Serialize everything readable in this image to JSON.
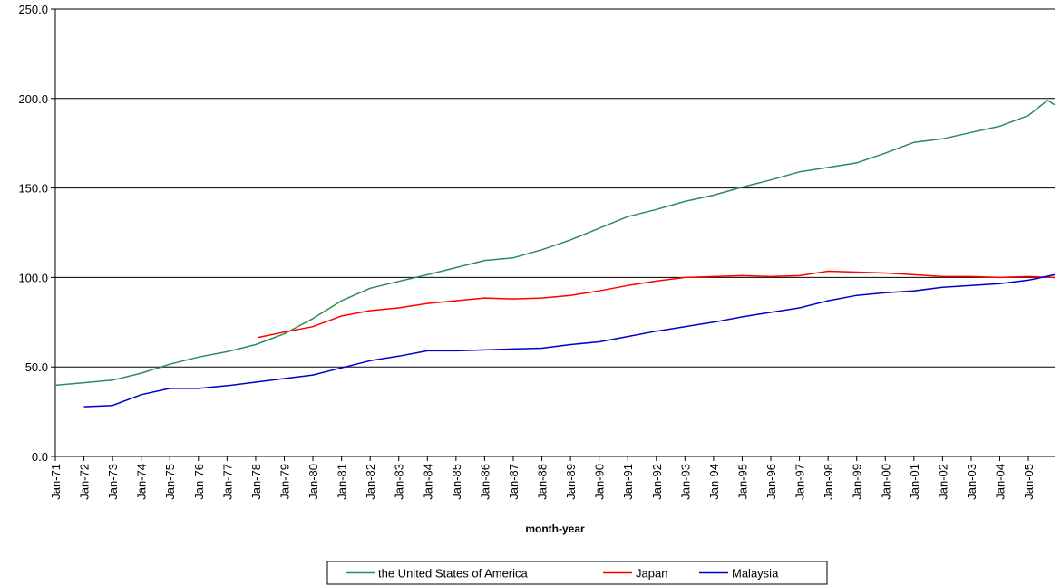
{
  "chart_data": {
    "type": "line",
    "title": "",
    "xlabel": "month-year",
    "ylabel": "",
    "ylim": [
      0,
      250
    ],
    "y_ticks": [
      "0.0",
      "50.0",
      "100.0",
      "150.0",
      "200.0",
      "250.0"
    ],
    "x_range": [
      "Jan-71",
      "Dec-05"
    ],
    "x_ticks": [
      "Jan-71",
      "Jan-72",
      "Jan-73",
      "Jan-74",
      "Jan-75",
      "Jan-76",
      "Jan-77",
      "Jan-78",
      "Jan-79",
      "Jan-80",
      "Jan-81",
      "Jan-82",
      "Jan-83",
      "Jan-84",
      "Jan-85",
      "Jan-86",
      "Jan-87",
      "Jan-88",
      "Jan-89",
      "Jan-90",
      "Jan-91",
      "Jan-92",
      "Jan-93",
      "Jan-94",
      "Jan-95",
      "Jan-96",
      "Jan-97",
      "Jan-98",
      "Jan-99",
      "Jan-00",
      "Jan-01",
      "Jan-02",
      "Jan-03",
      "Jan-04",
      "Jan-05"
    ],
    "grid": "horizontal",
    "legend_position": "bottom-center",
    "series": [
      {
        "name": "the United States of America",
        "color": "#2e8b57",
        "points": [
          [
            "Jan-71",
            39.8
          ],
          [
            "Jan-72",
            41.2
          ],
          [
            "Jan-73",
            42.6
          ],
          [
            "Jan-74",
            46.5
          ],
          [
            "Jan-75",
            51.5
          ],
          [
            "Jan-76",
            55.5
          ],
          [
            "Jan-77",
            58.5
          ],
          [
            "Jan-78",
            62.5
          ],
          [
            "Jan-79",
            68.5
          ],
          [
            "Jan-80",
            77.0
          ],
          [
            "Jan-81",
            87.0
          ],
          [
            "Jan-82",
            94.0
          ],
          [
            "Jan-83",
            97.8
          ],
          [
            "Jan-84",
            101.5
          ],
          [
            "Jan-85",
            105.5
          ],
          [
            "Jan-86",
            109.5
          ],
          [
            "Jan-87",
            111.0
          ],
          [
            "Jan-88",
            115.5
          ],
          [
            "Jan-89",
            121.0
          ],
          [
            "Jan-90",
            127.5
          ],
          [
            "Jan-91",
            134.0
          ],
          [
            "Jan-92",
            138.0
          ],
          [
            "Jan-93",
            142.5
          ],
          [
            "Jan-94",
            146.0
          ],
          [
            "Jan-95",
            150.5
          ],
          [
            "Jan-96",
            154.5
          ],
          [
            "Jan-97",
            159.0
          ],
          [
            "Jan-98",
            161.5
          ],
          [
            "Jan-99",
            164.0
          ],
          [
            "Jan-00",
            169.5
          ],
          [
            "Jan-01",
            175.5
          ],
          [
            "Jan-02",
            177.5
          ],
          [
            "Jan-03",
            181.0
          ],
          [
            "Jan-04",
            184.5
          ],
          [
            "Jan-05",
            190.5
          ],
          [
            "Sep-05",
            199.0
          ],
          [
            "Dec-05",
            196.5
          ]
        ]
      },
      {
        "name": "Japan",
        "color": "#ff0000",
        "points": [
          [
            "Feb-78",
            66.5
          ],
          [
            "Jan-79",
            69.5
          ],
          [
            "Jan-80",
            72.5
          ],
          [
            "Jan-81",
            78.5
          ],
          [
            "Jan-82",
            81.5
          ],
          [
            "Jan-83",
            83.0
          ],
          [
            "Jan-84",
            85.5
          ],
          [
            "Jan-85",
            87.0
          ],
          [
            "Jan-86",
            88.5
          ],
          [
            "Jan-87",
            88.0
          ],
          [
            "Jan-88",
            88.5
          ],
          [
            "Jan-89",
            90.0
          ],
          [
            "Jan-90",
            92.5
          ],
          [
            "Jan-91",
            95.5
          ],
          [
            "Jan-92",
            98.0
          ],
          [
            "Jan-93",
            100.0
          ],
          [
            "Jan-94",
            100.5
          ],
          [
            "Jan-95",
            101.0
          ],
          [
            "Jan-96",
            100.5
          ],
          [
            "Jan-97",
            101.0
          ],
          [
            "Jan-98",
            103.5
          ],
          [
            "Jan-99",
            103.0
          ],
          [
            "Jan-00",
            102.5
          ],
          [
            "Jan-01",
            101.5
          ],
          [
            "Jan-02",
            100.5
          ],
          [
            "Jan-03",
            100.5
          ],
          [
            "Jan-04",
            100.0
          ],
          [
            "Jan-05",
            100.5
          ],
          [
            "Dec-05",
            100.0
          ]
        ]
      },
      {
        "name": "Malaysia",
        "color": "#0000cc",
        "points": [
          [
            "Jan-72",
            27.8
          ],
          [
            "Jan-73",
            28.5
          ],
          [
            "Jan-74",
            34.5
          ],
          [
            "Jan-75",
            38.0
          ],
          [
            "Jan-76",
            38.0
          ],
          [
            "Jan-77",
            39.5
          ],
          [
            "Jan-78",
            41.5
          ],
          [
            "Jan-79",
            43.5
          ],
          [
            "Jan-80",
            45.5
          ],
          [
            "Jan-81",
            49.5
          ],
          [
            "Jan-82",
            53.5
          ],
          [
            "Jan-83",
            56.0
          ],
          [
            "Jan-84",
            59.0
          ],
          [
            "Jan-85",
            59.0
          ],
          [
            "Jan-86",
            59.5
          ],
          [
            "Jan-87",
            60.0
          ],
          [
            "Jan-88",
            60.5
          ],
          [
            "Jan-89",
            62.5
          ],
          [
            "Jan-90",
            64.0
          ],
          [
            "Jan-91",
            67.0
          ],
          [
            "Jan-92",
            70.0
          ],
          [
            "Jan-93",
            72.5
          ],
          [
            "Jan-94",
            75.0
          ],
          [
            "Jan-95",
            78.0
          ],
          [
            "Jan-96",
            80.5
          ],
          [
            "Jan-97",
            83.0
          ],
          [
            "Jan-98",
            87.0
          ],
          [
            "Jan-99",
            90.0
          ],
          [
            "Jan-00",
            91.5
          ],
          [
            "Jan-01",
            92.5
          ],
          [
            "Jan-02",
            94.5
          ],
          [
            "Jan-03",
            95.5
          ],
          [
            "Jan-04",
            96.5
          ],
          [
            "Jan-05",
            98.5
          ],
          [
            "Dec-05",
            101.5
          ]
        ]
      }
    ]
  }
}
